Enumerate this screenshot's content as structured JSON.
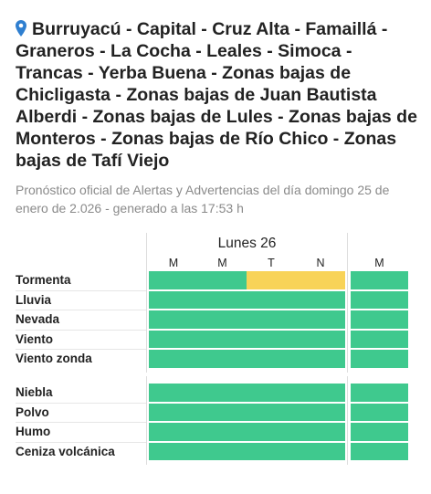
{
  "header": {
    "title": "Burruyacú - Capital - Cruz Alta - Famaillá - Graneros - La Cocha - Leales - Simoca - Trancas - Yerba Buena - Zonas bajas de Chicligasta - Zonas bajas de Juan Bautista Alberdi - Zonas bajas de Lules - Zonas bajas de Monteros - Zonas bajas de Río Chico - Zonas bajas de Tafí Viejo",
    "subtitle": "Pronóstico oficial de Alertas y Advertencias del día domingo 25 de enero de 2.026 - generado a las 17:53 h"
  },
  "table": {
    "day": "Lunes 26",
    "periods": [
      "M",
      "M",
      "T",
      "N",
      "M"
    ],
    "groups": [
      {
        "rows": [
          {
            "label": "Tormenta",
            "cells": [
              "#3fc98e",
              "#3fc98e",
              "#f8d358",
              "#f8d358",
              "#3fc98e"
            ]
          },
          {
            "label": "Lluvia",
            "cells": [
              "#3fc98e",
              "#3fc98e",
              "#3fc98e",
              "#3fc98e",
              "#3fc98e"
            ]
          },
          {
            "label": "Nevada",
            "cells": [
              "#3fc98e",
              "#3fc98e",
              "#3fc98e",
              "#3fc98e",
              "#3fc98e"
            ]
          },
          {
            "label": "Viento",
            "cells": [
              "#3fc98e",
              "#3fc98e",
              "#3fc98e",
              "#3fc98e",
              "#3fc98e"
            ]
          },
          {
            "label": "Viento zonda",
            "cells": [
              "#3fc98e",
              "#3fc98e",
              "#3fc98e",
              "#3fc98e",
              "#3fc98e"
            ]
          }
        ]
      },
      {
        "rows": [
          {
            "label": "Niebla",
            "cells": [
              "#3fc98e",
              "#3fc98e",
              "#3fc98e",
              "#3fc98e",
              "#3fc98e"
            ]
          },
          {
            "label": "Polvo",
            "cells": [
              "#3fc98e",
              "#3fc98e",
              "#3fc98e",
              "#3fc98e",
              "#3fc98e"
            ]
          },
          {
            "label": "Humo",
            "cells": [
              "#3fc98e",
              "#3fc98e",
              "#3fc98e",
              "#3fc98e",
              "#3fc98e"
            ]
          },
          {
            "label": "Ceniza volcánica",
            "cells": [
              "#3fc98e",
              "#3fc98e",
              "#3fc98e",
              "#3fc98e",
              "#3fc98e"
            ]
          }
        ]
      }
    ]
  }
}
